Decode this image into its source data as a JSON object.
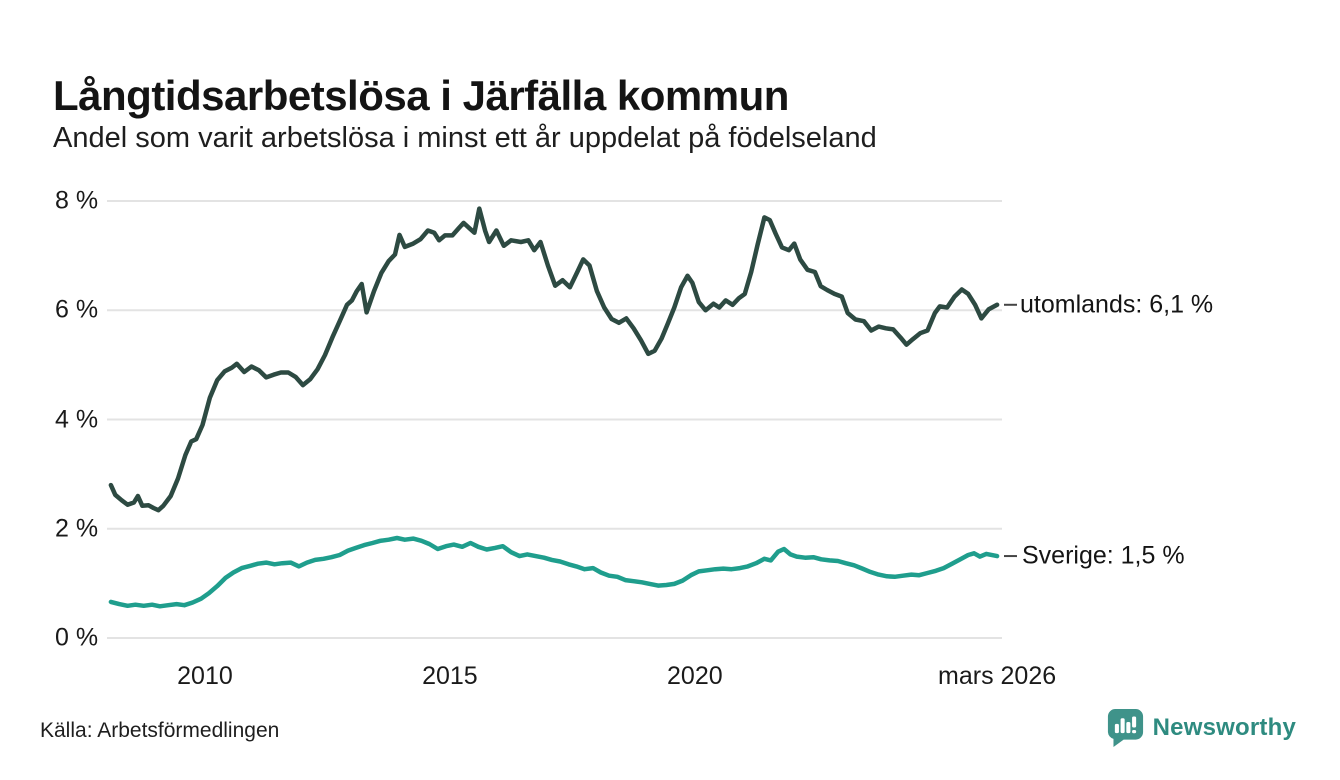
{
  "header": {
    "title": "Långtidsarbetslösa i Järfälla kommun",
    "subtitle": "Andel som varit arbetslösa i minst ett år uppdelat på födelseland"
  },
  "footer": {
    "source": "Källa: Arbetsförmedlingen",
    "brand_name": "Newsworthy",
    "brand_icon": "bar-chart-speech-bubble-icon"
  },
  "colors": {
    "utomlands_line": "#2d4a42",
    "sverige_line": "#1f9e8d",
    "grid": "#e3e3e3",
    "text": "#1a1a1a",
    "label_dash": "#444444",
    "brand": "#2e8b80",
    "brand_icon_fill": "#3f938a"
  },
  "chart_data": {
    "type": "line",
    "title": "Långtidsarbetslösa i Järfälla kommun",
    "subtitle": "Andel som varit arbetslösa i minst ett år uppdelat på födelseland",
    "x_axis": {
      "range": [
        2008.0,
        2026.27
      ],
      "ticks": [
        {
          "x": 2010,
          "label": "2010"
        },
        {
          "x": 2015,
          "label": "2015"
        },
        {
          "x": 2020,
          "label": "2020"
        },
        {
          "x": 2026.17,
          "label": "mars 2026"
        }
      ]
    },
    "y_axis": {
      "range": [
        0,
        8
      ],
      "unit": "%",
      "ticks": [
        {
          "v": 0,
          "label": "0 %"
        },
        {
          "v": 2,
          "label": "2 %"
        },
        {
          "v": 4,
          "label": "4 %"
        },
        {
          "v": 6,
          "label": "6 %"
        },
        {
          "v": 8,
          "label": "8 %"
        }
      ],
      "grid": true
    },
    "legend_position": "end-of-line-right",
    "series": [
      {
        "name": "utomlands",
        "end_label": "utomlands: 6,1 %",
        "final_value_text": "6,1 %",
        "color": "#2d4a42",
        "points": [
          [
            2008.08,
            2.8
          ],
          [
            2008.17,
            2.62
          ],
          [
            2008.3,
            2.52
          ],
          [
            2008.42,
            2.44
          ],
          [
            2008.55,
            2.48
          ],
          [
            2008.63,
            2.6
          ],
          [
            2008.72,
            2.42
          ],
          [
            2008.85,
            2.43
          ],
          [
            2008.95,
            2.38
          ],
          [
            2009.05,
            2.34
          ],
          [
            2009.15,
            2.42
          ],
          [
            2009.3,
            2.6
          ],
          [
            2009.45,
            2.92
          ],
          [
            2009.6,
            3.35
          ],
          [
            2009.72,
            3.6
          ],
          [
            2009.82,
            3.64
          ],
          [
            2009.95,
            3.9
          ],
          [
            2010.1,
            4.4
          ],
          [
            2010.25,
            4.72
          ],
          [
            2010.4,
            4.88
          ],
          [
            2010.55,
            4.95
          ],
          [
            2010.65,
            5.02
          ],
          [
            2010.8,
            4.87
          ],
          [
            2010.95,
            4.97
          ],
          [
            2011.1,
            4.9
          ],
          [
            2011.25,
            4.77
          ],
          [
            2011.4,
            4.82
          ],
          [
            2011.55,
            4.86
          ],
          [
            2011.7,
            4.86
          ],
          [
            2011.85,
            4.78
          ],
          [
            2012.0,
            4.63
          ],
          [
            2012.15,
            4.74
          ],
          [
            2012.3,
            4.92
          ],
          [
            2012.45,
            5.18
          ],
          [
            2012.6,
            5.5
          ],
          [
            2012.75,
            5.8
          ],
          [
            2012.9,
            6.1
          ],
          [
            2013.0,
            6.18
          ],
          [
            2013.1,
            6.35
          ],
          [
            2013.2,
            6.48
          ],
          [
            2013.3,
            5.96
          ],
          [
            2013.45,
            6.35
          ],
          [
            2013.6,
            6.68
          ],
          [
            2013.75,
            6.9
          ],
          [
            2013.88,
            7.02
          ],
          [
            2013.97,
            7.38
          ],
          [
            2014.08,
            7.16
          ],
          [
            2014.25,
            7.22
          ],
          [
            2014.4,
            7.3
          ],
          [
            2014.55,
            7.46
          ],
          [
            2014.68,
            7.42
          ],
          [
            2014.78,
            7.28
          ],
          [
            2014.9,
            7.37
          ],
          [
            2015.05,
            7.37
          ],
          [
            2015.18,
            7.5
          ],
          [
            2015.28,
            7.6
          ],
          [
            2015.4,
            7.5
          ],
          [
            2015.5,
            7.42
          ],
          [
            2015.6,
            7.86
          ],
          [
            2015.72,
            7.45
          ],
          [
            2015.8,
            7.25
          ],
          [
            2015.95,
            7.46
          ],
          [
            2016.1,
            7.18
          ],
          [
            2016.25,
            7.28
          ],
          [
            2016.45,
            7.25
          ],
          [
            2016.6,
            7.28
          ],
          [
            2016.72,
            7.1
          ],
          [
            2016.85,
            7.25
          ],
          [
            2017.0,
            6.82
          ],
          [
            2017.15,
            6.45
          ],
          [
            2017.3,
            6.55
          ],
          [
            2017.45,
            6.42
          ],
          [
            2017.6,
            6.7
          ],
          [
            2017.72,
            6.93
          ],
          [
            2017.85,
            6.82
          ],
          [
            2018.0,
            6.35
          ],
          [
            2018.15,
            6.05
          ],
          [
            2018.3,
            5.84
          ],
          [
            2018.45,
            5.77
          ],
          [
            2018.6,
            5.85
          ],
          [
            2018.75,
            5.67
          ],
          [
            2018.9,
            5.45
          ],
          [
            2019.05,
            5.2
          ],
          [
            2019.18,
            5.26
          ],
          [
            2019.32,
            5.48
          ],
          [
            2019.45,
            5.76
          ],
          [
            2019.58,
            6.05
          ],
          [
            2019.72,
            6.42
          ],
          [
            2019.85,
            6.63
          ],
          [
            2019.95,
            6.5
          ],
          [
            2020.08,
            6.15
          ],
          [
            2020.22,
            6.0
          ],
          [
            2020.38,
            6.12
          ],
          [
            2020.5,
            6.05
          ],
          [
            2020.63,
            6.18
          ],
          [
            2020.77,
            6.1
          ],
          [
            2020.9,
            6.22
          ],
          [
            2021.02,
            6.3
          ],
          [
            2021.15,
            6.7
          ],
          [
            2021.28,
            7.2
          ],
          [
            2021.42,
            7.7
          ],
          [
            2021.53,
            7.65
          ],
          [
            2021.65,
            7.4
          ],
          [
            2021.78,
            7.15
          ],
          [
            2021.92,
            7.1
          ],
          [
            2022.03,
            7.22
          ],
          [
            2022.15,
            6.93
          ],
          [
            2022.3,
            6.74
          ],
          [
            2022.45,
            6.7
          ],
          [
            2022.57,
            6.44
          ],
          [
            2022.7,
            6.37
          ],
          [
            2022.85,
            6.3
          ],
          [
            2023.0,
            6.25
          ],
          [
            2023.12,
            5.95
          ],
          [
            2023.28,
            5.83
          ],
          [
            2023.45,
            5.8
          ],
          [
            2023.6,
            5.63
          ],
          [
            2023.75,
            5.7
          ],
          [
            2023.9,
            5.67
          ],
          [
            2024.05,
            5.65
          ],
          [
            2024.2,
            5.5
          ],
          [
            2024.32,
            5.37
          ],
          [
            2024.45,
            5.47
          ],
          [
            2024.6,
            5.58
          ],
          [
            2024.75,
            5.63
          ],
          [
            2024.9,
            5.95
          ],
          [
            2025.0,
            6.07
          ],
          [
            2025.15,
            6.05
          ],
          [
            2025.3,
            6.25
          ],
          [
            2025.45,
            6.38
          ],
          [
            2025.58,
            6.3
          ],
          [
            2025.72,
            6.1
          ],
          [
            2025.85,
            5.85
          ],
          [
            2026.0,
            6.02
          ],
          [
            2026.17,
            6.1
          ]
        ]
      },
      {
        "name": "Sverige",
        "end_label": "Sverige: 1,5 %",
        "final_value_text": "1,5 %",
        "color": "#1f9e8d",
        "points": [
          [
            2008.08,
            0.66
          ],
          [
            2008.25,
            0.62
          ],
          [
            2008.42,
            0.59
          ],
          [
            2008.58,
            0.61
          ],
          [
            2008.75,
            0.59
          ],
          [
            2008.92,
            0.61
          ],
          [
            2009.08,
            0.58
          ],
          [
            2009.25,
            0.6
          ],
          [
            2009.42,
            0.62
          ],
          [
            2009.58,
            0.6
          ],
          [
            2009.75,
            0.65
          ],
          [
            2009.92,
            0.72
          ],
          [
            2010.08,
            0.82
          ],
          [
            2010.25,
            0.95
          ],
          [
            2010.42,
            1.1
          ],
          [
            2010.58,
            1.2
          ],
          [
            2010.75,
            1.28
          ],
          [
            2010.92,
            1.32
          ],
          [
            2011.08,
            1.36
          ],
          [
            2011.25,
            1.38
          ],
          [
            2011.42,
            1.35
          ],
          [
            2011.58,
            1.37
          ],
          [
            2011.75,
            1.38
          ],
          [
            2011.92,
            1.31
          ],
          [
            2012.08,
            1.38
          ],
          [
            2012.25,
            1.43
          ],
          [
            2012.42,
            1.45
          ],
          [
            2012.58,
            1.48
          ],
          [
            2012.75,
            1.52
          ],
          [
            2012.92,
            1.6
          ],
          [
            2013.08,
            1.65
          ],
          [
            2013.25,
            1.7
          ],
          [
            2013.42,
            1.74
          ],
          [
            2013.58,
            1.78
          ],
          [
            2013.75,
            1.8
          ],
          [
            2013.92,
            1.83
          ],
          [
            2014.08,
            1.8
          ],
          [
            2014.25,
            1.82
          ],
          [
            2014.42,
            1.78
          ],
          [
            2014.58,
            1.72
          ],
          [
            2014.75,
            1.63
          ],
          [
            2014.92,
            1.68
          ],
          [
            2015.08,
            1.71
          ],
          [
            2015.25,
            1.67
          ],
          [
            2015.42,
            1.74
          ],
          [
            2015.58,
            1.67
          ],
          [
            2015.75,
            1.62
          ],
          [
            2015.92,
            1.65
          ],
          [
            2016.08,
            1.68
          ],
          [
            2016.25,
            1.57
          ],
          [
            2016.42,
            1.5
          ],
          [
            2016.58,
            1.53
          ],
          [
            2016.75,
            1.5
          ],
          [
            2016.92,
            1.47
          ],
          [
            2017.08,
            1.43
          ],
          [
            2017.25,
            1.4
          ],
          [
            2017.42,
            1.35
          ],
          [
            2017.58,
            1.31
          ],
          [
            2017.75,
            1.26
          ],
          [
            2017.92,
            1.28
          ],
          [
            2018.08,
            1.2
          ],
          [
            2018.25,
            1.14
          ],
          [
            2018.42,
            1.12
          ],
          [
            2018.58,
            1.06
          ],
          [
            2018.75,
            1.04
          ],
          [
            2018.92,
            1.02
          ],
          [
            2019.08,
            0.99
          ],
          [
            2019.25,
            0.96
          ],
          [
            2019.42,
            0.97
          ],
          [
            2019.58,
            0.99
          ],
          [
            2019.75,
            1.05
          ],
          [
            2019.92,
            1.15
          ],
          [
            2020.08,
            1.22
          ],
          [
            2020.25,
            1.24
          ],
          [
            2020.42,
            1.26
          ],
          [
            2020.58,
            1.27
          ],
          [
            2020.75,
            1.26
          ],
          [
            2020.92,
            1.28
          ],
          [
            2021.08,
            1.31
          ],
          [
            2021.25,
            1.37
          ],
          [
            2021.42,
            1.45
          ],
          [
            2021.55,
            1.42
          ],
          [
            2021.7,
            1.58
          ],
          [
            2021.82,
            1.63
          ],
          [
            2021.95,
            1.53
          ],
          [
            2022.08,
            1.49
          ],
          [
            2022.25,
            1.47
          ],
          [
            2022.42,
            1.48
          ],
          [
            2022.58,
            1.44
          ],
          [
            2022.75,
            1.42
          ],
          [
            2022.92,
            1.41
          ],
          [
            2023.08,
            1.37
          ],
          [
            2023.25,
            1.33
          ],
          [
            2023.42,
            1.27
          ],
          [
            2023.58,
            1.21
          ],
          [
            2023.75,
            1.16
          ],
          [
            2023.92,
            1.13
          ],
          [
            2024.08,
            1.12
          ],
          [
            2024.25,
            1.14
          ],
          [
            2024.42,
            1.16
          ],
          [
            2024.58,
            1.15
          ],
          [
            2024.75,
            1.19
          ],
          [
            2024.92,
            1.23
          ],
          [
            2025.08,
            1.28
          ],
          [
            2025.25,
            1.36
          ],
          [
            2025.42,
            1.44
          ],
          [
            2025.58,
            1.52
          ],
          [
            2025.7,
            1.55
          ],
          [
            2025.82,
            1.49
          ],
          [
            2025.95,
            1.54
          ],
          [
            2026.17,
            1.5
          ]
        ]
      }
    ]
  }
}
